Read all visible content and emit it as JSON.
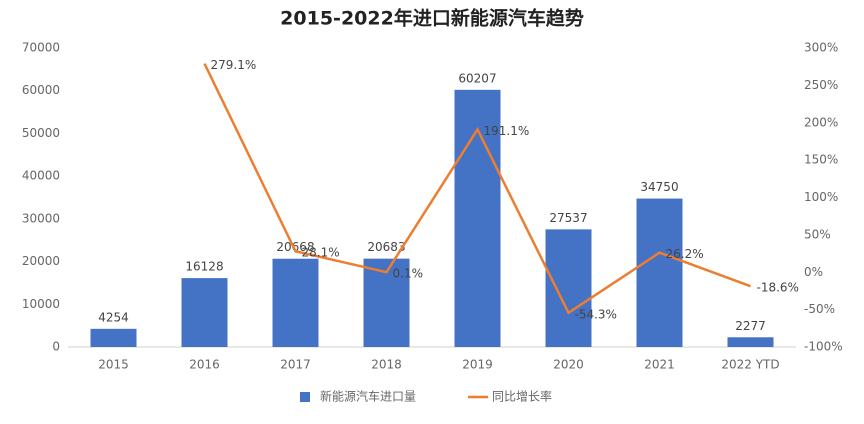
{
  "chart_data": {
    "type": "bar",
    "title": "2015-2022年进口新能源汽车趋势",
    "categories": [
      "2015",
      "2016",
      "2017",
      "2018",
      "2019",
      "2020",
      "2021",
      "2022 YTD"
    ],
    "series": [
      {
        "name": "新能源汽车进口量",
        "type": "bar",
        "color": "#4472c4",
        "values": [
          4254,
          16128,
          20668,
          20683,
          60207,
          27537,
          34750,
          2277
        ]
      },
      {
        "name": "同比增长率",
        "type": "line",
        "axis": "y2",
        "color": "#ed7d31",
        "values": [
          null,
          279.1,
          28.1,
          0.1,
          191.1,
          -54.3,
          26.2,
          -18.6
        ],
        "value_labels": [
          null,
          "279.1%",
          "28.1%",
          "0.1%",
          "191.1%",
          "-54.3%",
          "26.2%",
          "-18.6%"
        ]
      }
    ],
    "ylim": [
      0,
      70000
    ],
    "yticks": [
      0,
      10000,
      20000,
      30000,
      40000,
      50000,
      60000,
      70000
    ],
    "y2lim": [
      -100,
      300
    ],
    "y2ticks": [
      {
        "value": -100,
        "label": "-100%"
      },
      {
        "value": -50,
        "label": "-50%"
      },
      {
        "value": 0,
        "label": "0%"
      },
      {
        "value": 50,
        "label": "50%"
      },
      {
        "value": 100,
        "label": "100%"
      },
      {
        "value": 150,
        "label": "150%"
      },
      {
        "value": 200,
        "label": "200%"
      },
      {
        "value": 250,
        "label": "250%"
      },
      {
        "value": 300,
        "label": "300%"
      }
    ],
    "grid": false,
    "legend": "bottom"
  }
}
